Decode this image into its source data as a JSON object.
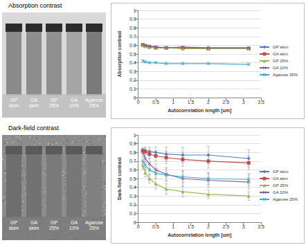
{
  "figure": {
    "panels": [
      {
        "title": "Absorption contrast",
        "image_labels": [
          "GP skim",
          "GA skim",
          "GP 25%",
          "GA 10%",
          "Agarose 25%"
        ]
      },
      {
        "title": "Dark-field contrast",
        "image_labels": [
          "GP skim",
          "GA skim",
          "GP 25%",
          "GA 10%",
          "Agarose 25%"
        ]
      }
    ]
  },
  "chart_data": [
    {
      "type": "line",
      "x_label": "Autocorrelation length [um]",
      "y_label": "Absorption contrast",
      "x": [
        0.13,
        0.2,
        0.32,
        0.5,
        0.8,
        1.27,
        2.0,
        3.15
      ],
      "xlim": [
        0,
        3.5
      ],
      "xticks": [
        0,
        0.5,
        1,
        1.5,
        2,
        2.5,
        3,
        3.5
      ],
      "ylim": [
        0,
        1
      ],
      "yticks": [
        0,
        0.1,
        0.2,
        0.3,
        0.4,
        0.5,
        0.6,
        0.7,
        0.8,
        0.9,
        1
      ],
      "grid": true,
      "legend": "right",
      "series": [
        {
          "name": "GP skim",
          "color": "#4a7ebb",
          "marker": "diamond",
          "values": [
            0.61,
            0.6,
            0.59,
            0.58,
            0.57,
            0.57,
            0.57,
            0.57
          ]
        },
        {
          "name": "GA skim",
          "color": "#be4b48",
          "marker": "square",
          "values": [
            0.6,
            0.59,
            0.58,
            0.57,
            0.57,
            0.57,
            0.56,
            0.56
          ]
        },
        {
          "name": "GP 25%",
          "color": "#98b954",
          "marker": "triangle",
          "values": [
            0.6,
            0.59,
            0.58,
            0.57,
            0.57,
            0.56,
            0.56,
            0.56
          ]
        },
        {
          "name": "GA 10%",
          "color": "#7d60a0",
          "marker": "x",
          "values": [
            0.61,
            0.6,
            0.59,
            0.58,
            0.57,
            0.58,
            0.57,
            0.57
          ]
        },
        {
          "name": "Agarose 25%",
          "color": "#46aac5",
          "marker": "asterisk",
          "values": [
            0.42,
            0.41,
            0.4,
            0.4,
            0.39,
            0.39,
            0.39,
            0.38
          ]
        }
      ]
    },
    {
      "type": "line",
      "x_label": "Autocorrelation length [um]",
      "y_label": "Dark-field contrast",
      "x": [
        0.13,
        0.2,
        0.32,
        0.5,
        0.8,
        1.27,
        2.0,
        3.15
      ],
      "xlim": [
        0,
        3.5
      ],
      "xticks": [
        0,
        0.5,
        1,
        1.5,
        2,
        2.5,
        3,
        3.5
      ],
      "ylim": [
        0,
        1
      ],
      "yticks": [
        0,
        0.1,
        0.2,
        0.3,
        0.4,
        0.5,
        0.6,
        0.7,
        0.8,
        0.9,
        1
      ],
      "grid": true,
      "legend": "right",
      "series": [
        {
          "name": "GP skim",
          "color": "#4a7ebb",
          "marker": "diamond",
          "values": [
            0.82,
            0.82,
            0.81,
            0.8,
            0.78,
            0.77,
            0.77,
            0.73
          ],
          "errors": [
            0.03,
            0.04,
            0.05,
            0.06,
            0.08,
            0.09,
            0.1,
            0.1
          ]
        },
        {
          "name": "GA skim",
          "color": "#be4b48",
          "marker": "square",
          "values": [
            0.82,
            0.81,
            0.78,
            0.76,
            0.74,
            0.72,
            0.7,
            0.68
          ],
          "errors": [
            0.03,
            0.04,
            0.05,
            0.06,
            0.07,
            0.08,
            0.08,
            0.08
          ]
        },
        {
          "name": "GP 25%",
          "color": "#98b954",
          "marker": "triangle",
          "values": [
            0.65,
            0.57,
            0.5,
            0.44,
            0.38,
            0.35,
            0.32,
            0.3
          ],
          "errors": [
            0.04,
            0.05,
            0.05,
            0.06,
            0.06,
            0.06,
            0.05,
            0.05
          ]
        },
        {
          "name": "GA 10%",
          "color": "#7d60a0",
          "marker": "x",
          "values": [
            0.8,
            0.73,
            0.67,
            0.6,
            0.55,
            0.5,
            0.48,
            0.46
          ],
          "errors": [
            0.04,
            0.05,
            0.06,
            0.07,
            0.08,
            0.08,
            0.08,
            0.08
          ]
        },
        {
          "name": "Agarose 25%",
          "color": "#46aac5",
          "marker": "asterisk",
          "values": [
            0.7,
            0.65,
            0.6,
            0.56,
            0.54,
            0.52,
            0.5,
            0.49
          ],
          "errors": [
            0.04,
            0.05,
            0.06,
            0.06,
            0.07,
            0.07,
            0.07,
            0.07
          ]
        }
      ]
    }
  ]
}
